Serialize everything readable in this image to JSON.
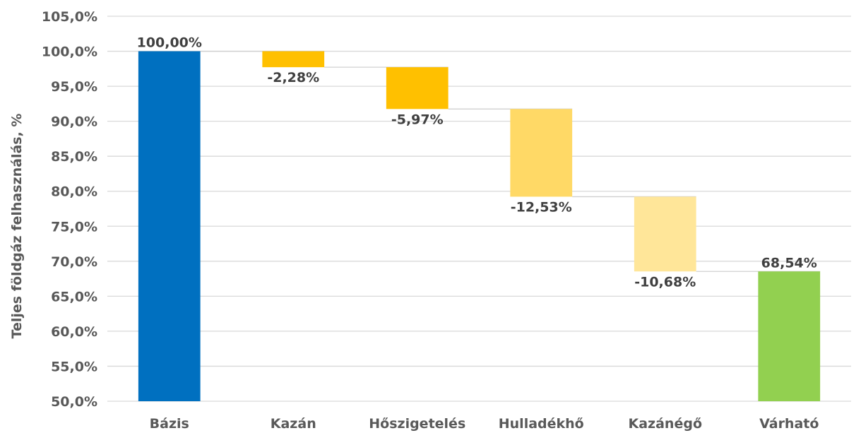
{
  "chart_data": {
    "type": "bar",
    "subtype": "waterfall",
    "title": "",
    "xlabel": "",
    "ylabel": "Teljes földgáz felhasználás, %",
    "ylim": [
      50,
      105
    ],
    "ytick_step": 5,
    "ytick_labels": [
      "50,0%",
      "55,0%",
      "60,0%",
      "65,0%",
      "70,0%",
      "75,0%",
      "80,0%",
      "85,0%",
      "90,0%",
      "95,0%",
      "100,0%",
      "105,0%"
    ],
    "grid": true,
    "legend": "none",
    "categories": [
      "Bázis",
      "Kazán",
      "Hőszigetelés",
      "Hulladékhő",
      "Kazánégő",
      "Várható"
    ],
    "values": [
      100.0,
      -2.28,
      -5.97,
      -12.53,
      -10.68,
      68.54
    ],
    "data_labels": [
      "100,00%",
      "-2,28%",
      "-5,97%",
      "-12,53%",
      "-10,68%",
      "68,54%"
    ],
    "kinds": [
      "total",
      "delta",
      "delta",
      "delta",
      "delta",
      "total"
    ],
    "colors": [
      "#0070c0",
      "#ffc000",
      "#ffc000",
      "#ffd966",
      "#ffe699",
      "#92d050"
    ]
  }
}
